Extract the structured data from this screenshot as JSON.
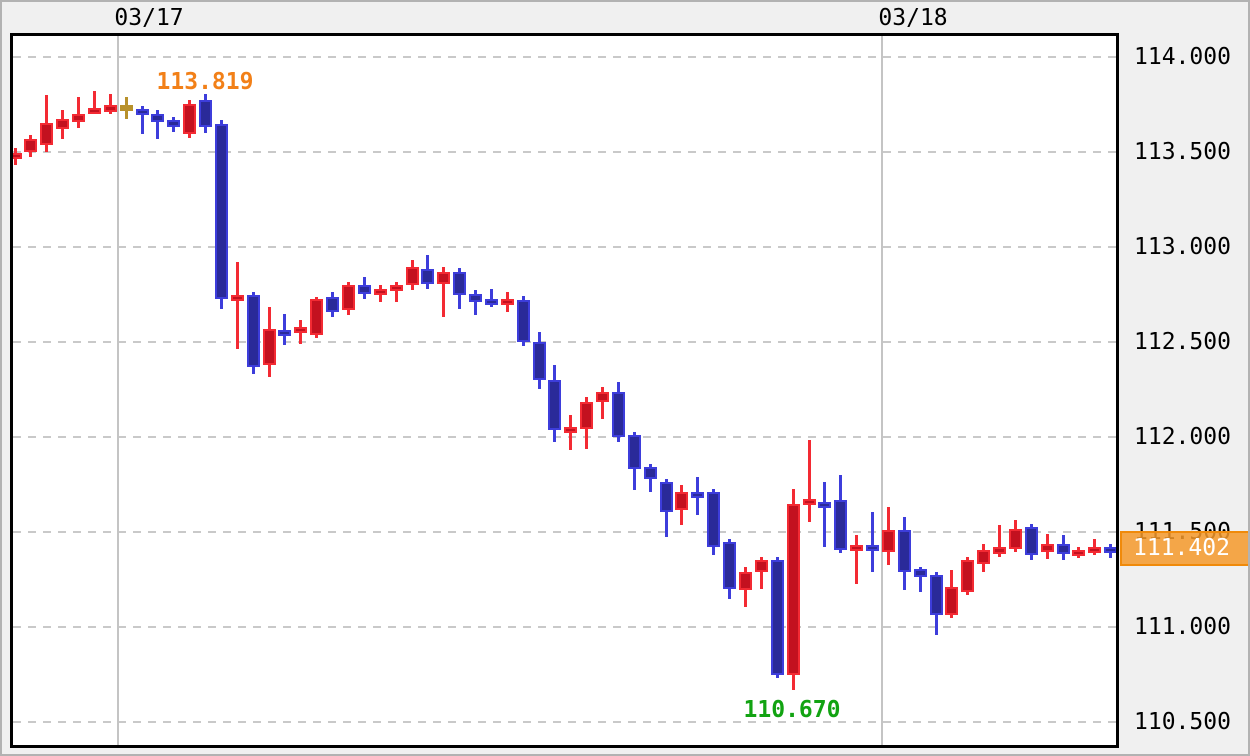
{
  "window": {
    "background": "#f0f0f0",
    "border_color": "#b2b2b2",
    "plot_background": "#ffffff",
    "plot_border_color": "#000000",
    "grid_color": "#c9c9c9"
  },
  "chart_data": {
    "type": "candlestick",
    "title": "",
    "x_axis": {
      "labels": [
        "03/17",
        "03/18"
      ],
      "day_separators": [
        {
          "label": "03/17",
          "position": 6.49
        },
        {
          "label": "03/18",
          "position": 54.6
        }
      ],
      "grid": "solid-vertical-per-day"
    },
    "y_axis": {
      "side": "right",
      "tick_labels": [
        "114.000",
        "113.500",
        "113.000",
        "112.500",
        "112.000",
        "111.500",
        "111.000",
        "110.500"
      ],
      "tick_values": [
        114.0,
        113.5,
        113.0,
        112.5,
        112.0,
        111.5,
        111.0,
        110.5
      ],
      "range": [
        110.36,
        114.13
      ],
      "grid": "dashed-horizontal"
    },
    "annotations": {
      "session_high": {
        "text": "113.819",
        "value": 113.819,
        "color": "#F28018"
      },
      "session_low": {
        "text": "110.670",
        "value": 110.67,
        "color": "#12A312"
      },
      "last_price": {
        "text": "111.402",
        "value": 111.402,
        "box_fill": "#F4992A",
        "box_border": "#F08A0A",
        "text_color": "#ffffff"
      }
    },
    "colors": {
      "r": {
        "fill": "#C3111F",
        "edge": "#F32A33"
      },
      "b": {
        "fill": "#2A2A99",
        "edge": "#3D3DDB"
      },
      "g": {
        "fill": "#B8912B",
        "edge": "#B8912B"
      }
    },
    "color_key": {
      "r": "red (bullish)",
      "b": "blue (bearish)",
      "g": "gold (doji)"
    },
    "candles_columns": [
      "open",
      "high",
      "low",
      "close",
      "color"
    ],
    "candles": [
      [
        113.463,
        113.521,
        113.432,
        113.495,
        "r"
      ],
      [
        113.5,
        113.589,
        113.474,
        113.568,
        "r"
      ],
      [
        113.537,
        113.8,
        113.5,
        113.653,
        "r"
      ],
      [
        113.621,
        113.721,
        113.568,
        113.674,
        "r"
      ],
      [
        113.658,
        113.789,
        113.626,
        113.7,
        "r"
      ],
      [
        113.711,
        113.819,
        113.7,
        113.732,
        "r"
      ],
      [
        113.711,
        113.805,
        113.7,
        113.747,
        "r"
      ],
      [
        113.747,
        113.789,
        113.674,
        113.747,
        "g"
      ],
      [
        113.726,
        113.742,
        113.595,
        113.695,
        "b"
      ],
      [
        113.7,
        113.721,
        113.568,
        113.658,
        "b"
      ],
      [
        113.668,
        113.684,
        113.605,
        113.632,
        "b"
      ],
      [
        113.595,
        113.774,
        113.574,
        113.753,
        "r"
      ],
      [
        113.774,
        113.805,
        113.6,
        113.632,
        "b"
      ],
      [
        113.647,
        113.668,
        112.674,
        112.726,
        "b"
      ],
      [
        112.721,
        112.921,
        112.463,
        112.747,
        "r"
      ],
      [
        112.747,
        112.763,
        112.332,
        112.368,
        "b"
      ],
      [
        112.379,
        112.684,
        112.316,
        112.568,
        "r"
      ],
      [
        112.563,
        112.647,
        112.484,
        112.553,
        "b"
      ],
      [
        112.547,
        112.616,
        112.489,
        112.579,
        "r"
      ],
      [
        112.537,
        112.737,
        112.521,
        112.726,
        "r"
      ],
      [
        112.737,
        112.763,
        112.632,
        112.658,
        "b"
      ],
      [
        112.668,
        112.816,
        112.642,
        112.8,
        "r"
      ],
      [
        112.8,
        112.842,
        112.726,
        112.753,
        "b"
      ],
      [
        112.753,
        112.8,
        112.711,
        112.779,
        "r"
      ],
      [
        112.774,
        112.816,
        112.711,
        112.8,
        "r"
      ],
      [
        112.8,
        112.932,
        112.774,
        112.895,
        "r"
      ],
      [
        112.884,
        112.958,
        112.779,
        112.805,
        "b"
      ],
      [
        112.805,
        112.895,
        112.632,
        112.868,
        "r"
      ],
      [
        112.868,
        112.889,
        112.674,
        112.747,
        "b"
      ],
      [
        112.753,
        112.774,
        112.642,
        112.711,
        "b"
      ],
      [
        112.726,
        112.779,
        112.684,
        112.705,
        "b"
      ],
      [
        112.695,
        112.763,
        112.658,
        112.726,
        "r"
      ],
      [
        112.721,
        112.742,
        112.479,
        112.5,
        "b"
      ],
      [
        112.5,
        112.553,
        112.253,
        112.3,
        "b"
      ],
      [
        112.3,
        112.379,
        111.974,
        112.037,
        "b"
      ],
      [
        112.021,
        112.116,
        111.932,
        112.053,
        "r"
      ],
      [
        112.042,
        112.211,
        111.937,
        112.184,
        "r"
      ],
      [
        112.184,
        112.263,
        112.095,
        112.237,
        "r"
      ],
      [
        112.237,
        112.289,
        111.974,
        112.0,
        "b"
      ],
      [
        112.011,
        112.026,
        111.721,
        111.832,
        "b"
      ],
      [
        111.842,
        111.858,
        111.711,
        111.779,
        "b"
      ],
      [
        111.763,
        111.779,
        111.474,
        111.605,
        "b"
      ],
      [
        111.616,
        111.747,
        111.537,
        111.711,
        "r"
      ],
      [
        111.711,
        111.789,
        111.589,
        111.689,
        "b"
      ],
      [
        111.711,
        111.726,
        111.379,
        111.421,
        "b"
      ],
      [
        111.447,
        111.463,
        111.147,
        111.2,
        "b"
      ],
      [
        111.195,
        111.316,
        111.105,
        111.289,
        "r"
      ],
      [
        111.289,
        111.368,
        111.2,
        111.353,
        "r"
      ],
      [
        111.353,
        111.368,
        110.732,
        110.747,
        "b"
      ],
      [
        110.747,
        111.726,
        110.67,
        111.647,
        "r"
      ],
      [
        111.642,
        111.984,
        111.553,
        111.674,
        "r"
      ],
      [
        111.658,
        111.763,
        111.421,
        111.626,
        "b"
      ],
      [
        111.668,
        111.8,
        111.389,
        111.405,
        "b"
      ],
      [
        111.405,
        111.484,
        111.226,
        111.432,
        "r"
      ],
      [
        111.432,
        111.605,
        111.289,
        111.4,
        "b"
      ],
      [
        111.395,
        111.632,
        111.326,
        111.511,
        "r"
      ],
      [
        111.511,
        111.579,
        111.195,
        111.289,
        "b"
      ],
      [
        111.305,
        111.316,
        111.184,
        111.263,
        "b"
      ],
      [
        111.274,
        111.289,
        110.958,
        111.063,
        "b"
      ],
      [
        111.063,
        111.3,
        111.047,
        111.211,
        "r"
      ],
      [
        111.184,
        111.368,
        111.168,
        111.353,
        "r"
      ],
      [
        111.332,
        111.437,
        111.289,
        111.405,
        "r"
      ],
      [
        111.384,
        111.537,
        111.368,
        111.421,
        "r"
      ],
      [
        111.411,
        111.563,
        111.395,
        111.516,
        "r"
      ],
      [
        111.526,
        111.542,
        111.353,
        111.379,
        "b"
      ],
      [
        111.395,
        111.489,
        111.358,
        111.437,
        "r"
      ],
      [
        111.437,
        111.484,
        111.353,
        111.384,
        "b"
      ],
      [
        111.379,
        111.421,
        111.363,
        111.405,
        "r"
      ],
      [
        111.395,
        111.463,
        111.379,
        111.421,
        "r"
      ],
      [
        111.421,
        111.437,
        111.363,
        111.402,
        "b"
      ]
    ]
  }
}
